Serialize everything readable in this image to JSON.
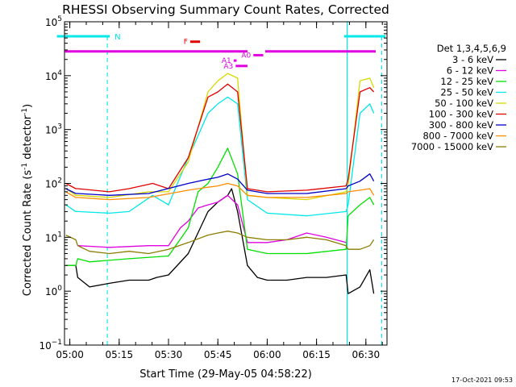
{
  "chart_data": {
    "type": "line",
    "title": "RHESSI Observing Summary Count Rates, Corrected",
    "xlabel": "Start Time (29-May-05 04:58:22)",
    "ylabel_pre": "Corrected Count Rate (s",
    "ylabel_sup1": "-1",
    "ylabel_mid": " detector",
    "ylabel_sup2": "-1",
    "ylabel_post": ")",
    "yscale": "log",
    "xlim": [
      4.973,
      6.607
    ],
    "ylim_exp": [
      -1,
      5
    ],
    "x_ticks": [
      {
        "t": 5.0,
        "label": "05:00"
      },
      {
        "t": 5.25,
        "label": "05:15"
      },
      {
        "t": 5.5,
        "label": "05:30"
      },
      {
        "t": 5.75,
        "label": "05:45"
      },
      {
        "t": 6.0,
        "label": "06:00"
      },
      {
        "t": 6.25,
        "label": "06:15"
      },
      {
        "t": 6.5,
        "label": "06:30"
      }
    ],
    "y_ticks": [
      {
        "exp": -1,
        "base": "10",
        "sup": "−1"
      },
      {
        "exp": 0,
        "base": "10",
        "sup": "0"
      },
      {
        "exp": 1,
        "base": "10",
        "sup": "1"
      },
      {
        "exp": 2,
        "base": "10",
        "sup": "2"
      },
      {
        "exp": 3,
        "base": "10",
        "sup": "3"
      },
      {
        "exp": 4,
        "base": "10",
        "sup": "4"
      },
      {
        "exp": 5,
        "base": "10",
        "sup": "5"
      }
    ],
    "legend_title": "Det 1,3,4,5,6,9",
    "legend_placement": "right",
    "series": [
      {
        "name": "3 - 6 keV",
        "color": "#000000",
        "x": [
          4.98,
          5.03,
          5.04,
          5.1,
          5.2,
          5.3,
          5.4,
          5.44,
          5.5,
          5.6,
          5.7,
          5.75,
          5.8,
          5.82,
          5.85,
          5.9,
          5.95,
          6.0,
          6.1,
          6.2,
          6.3,
          6.4,
          6.41,
          6.47,
          6.52,
          6.54
        ],
        "y": [
          3,
          3,
          1.8,
          1.2,
          1.4,
          1.6,
          1.6,
          1.8,
          2,
          5,
          30,
          45,
          60,
          80,
          30,
          3,
          1.8,
          1.6,
          1.6,
          1.8,
          1.8,
          2,
          0.9,
          1.2,
          2.5,
          0.9
        ]
      },
      {
        "name": "6 - 12 keV",
        "color": "#e000e0",
        "x": [
          5.04,
          5.2,
          5.4,
          5.5,
          5.56,
          5.6,
          5.65,
          5.7,
          5.75,
          5.8,
          5.85,
          5.9,
          6.0,
          6.1,
          6.2,
          6.3,
          6.4
        ],
        "y": [
          7,
          6.5,
          7,
          7,
          15,
          20,
          35,
          40,
          45,
          60,
          40,
          8,
          8,
          9,
          12,
          10,
          8
        ]
      },
      {
        "name": "12 - 25 keV",
        "color": "#00e000",
        "x": [
          4.98,
          5.03,
          5.04,
          5.1,
          5.3,
          5.5,
          5.6,
          5.65,
          5.7,
          5.75,
          5.8,
          5.85,
          5.9,
          6.0,
          6.2,
          6.4,
          6.41,
          6.47,
          6.52,
          6.54
        ],
        "y": [
          3,
          3,
          4,
          3.5,
          4,
          4.5,
          15,
          70,
          100,
          200,
          450,
          150,
          6,
          5,
          5,
          6,
          25,
          40,
          55,
          40
        ]
      },
      {
        "name": "25 - 50 keV",
        "color": "#00e8e8",
        "x": [
          4.98,
          5.03,
          5.04,
          5.2,
          5.3,
          5.42,
          5.5,
          5.6,
          5.7,
          5.75,
          5.8,
          5.85,
          5.9,
          6.0,
          6.2,
          6.4,
          6.41,
          6.47,
          6.52,
          6.54
        ],
        "y": [
          40,
          30,
          30,
          28,
          30,
          60,
          40,
          300,
          2000,
          3000,
          4000,
          3000,
          50,
          28,
          25,
          30,
          40,
          2000,
          3000,
          2000
        ]
      },
      {
        "name": "50 - 100 keV",
        "color": "#d8d800",
        "x": [
          4.98,
          5.03,
          5.04,
          5.2,
          5.4,
          5.5,
          5.6,
          5.7,
          5.75,
          5.8,
          5.85,
          5.9,
          6.0,
          6.2,
          6.4,
          6.41,
          6.47,
          6.52,
          6.54
        ],
        "y": [
          80,
          60,
          60,
          55,
          70,
          70,
          250,
          5000,
          8000,
          11000,
          9000,
          60,
          55,
          50,
          70,
          90,
          8000,
          9000,
          6000
        ]
      },
      {
        "name": "100 - 300 keV",
        "color": "#e00000",
        "x": [
          4.98,
          5.03,
          5.04,
          5.2,
          5.3,
          5.42,
          5.5,
          5.6,
          5.7,
          5.75,
          5.8,
          5.85,
          5.9,
          6.0,
          6.2,
          6.4,
          6.41,
          6.47,
          6.52,
          6.54
        ],
        "y": [
          100,
          80,
          80,
          70,
          80,
          100,
          80,
          300,
          4000,
          5000,
          7000,
          5000,
          80,
          70,
          75,
          90,
          120,
          5000,
          6000,
          5000
        ]
      },
      {
        "name": "300 - 800 keV",
        "color": "#0000c8",
        "x": [
          4.98,
          5.03,
          5.04,
          5.2,
          5.4,
          5.6,
          5.7,
          5.75,
          5.8,
          5.85,
          5.9,
          6.0,
          6.2,
          6.4,
          6.41,
          6.47,
          6.52,
          6.54
        ],
        "y": [
          80,
          65,
          65,
          60,
          65,
          100,
          120,
          130,
          150,
          120,
          75,
          65,
          65,
          80,
          90,
          110,
          150,
          110
        ]
      },
      {
        "name": "800 - 7000 keV",
        "color": "#ff8c00",
        "x": [
          4.98,
          5.03,
          5.04,
          5.2,
          5.4,
          5.6,
          5.7,
          5.75,
          5.8,
          5.85,
          5.9,
          6.0,
          6.2,
          6.4,
          6.41,
          6.47,
          6.52,
          6.54
        ],
        "y": [
          70,
          55,
          55,
          50,
          55,
          75,
          85,
          90,
          100,
          90,
          60,
          55,
          55,
          65,
          70,
          75,
          80,
          60
        ]
      },
      {
        "name": "7000 - 15000 keV",
        "color": "#8b7d00",
        "x": [
          4.98,
          5.03,
          5.04,
          5.1,
          5.2,
          5.3,
          5.4,
          5.5,
          5.6,
          5.7,
          5.75,
          5.8,
          5.85,
          5.9,
          6.0,
          6.1,
          6.2,
          6.3,
          6.4,
          6.41,
          6.47,
          6.52,
          6.54
        ],
        "y": [
          11,
          9,
          7,
          5.5,
          5,
          5.5,
          5,
          6,
          8,
          11,
          12,
          13,
          12,
          10,
          9,
          9,
          10,
          9,
          7,
          6,
          6,
          7,
          9
        ]
      }
    ],
    "top_bars": [
      {
        "label": "F",
        "color": "#e00000",
        "t0": 5.61,
        "t1": 5.66,
        "y_exp": 4.63
      },
      {
        "label": "A0",
        "color": "#e000e0",
        "t0": 5.93,
        "t1": 5.98,
        "y_exp": 4.38
      },
      {
        "label": "A1",
        "color": "#e000e0",
        "t0": 5.83,
        "t1": 5.845,
        "y_exp": 4.28
      },
      {
        "label": "A3",
        "color": "#e000e0",
        "t0": 5.84,
        "t1": 5.9,
        "y_exp": 4.18
      }
    ],
    "n_label": "N",
    "footer_date": "17-Oct-2021 09:53"
  }
}
